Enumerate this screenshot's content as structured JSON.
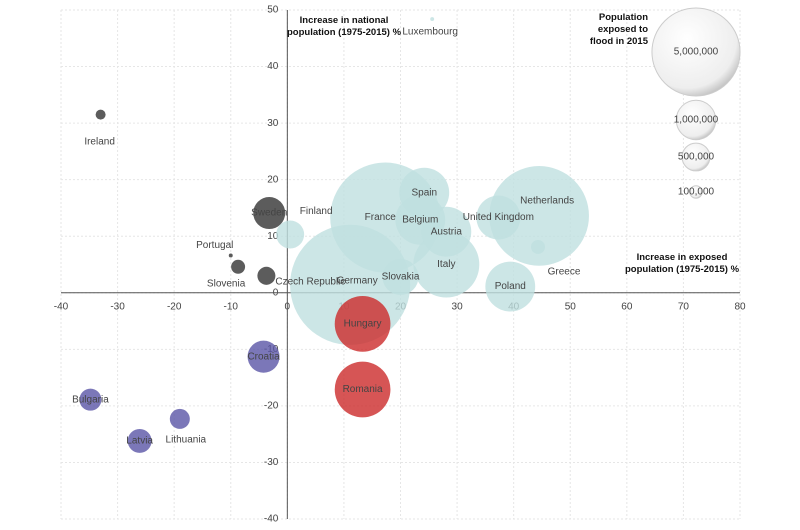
{
  "chart_data": {
    "type": "bubble",
    "y_label": "Increase in national population (1975-2015) %",
    "x_label": "Increase in exposed population (1975-2015) %",
    "xlim": [
      -40,
      80
    ],
    "xticks": [
      -40,
      -30,
      -20,
      -10,
      0,
      10,
      20,
      30,
      40,
      50,
      60,
      70,
      80
    ],
    "ylim": [
      -40,
      50
    ],
    "yticks": [
      -40,
      -30,
      -20,
      -10,
      0,
      10,
      20,
      30,
      40,
      50
    ],
    "grid": true,
    "points": [
      {
        "label": "Germany",
        "x": 11.1,
        "y": 1.4,
        "size": 9300000,
        "color": "#bfe0e0"
      },
      {
        "label": "France",
        "x": 17.3,
        "y": 13.3,
        "size": 7800000,
        "color": "#bfe0e0"
      },
      {
        "label": "Netherlands",
        "x": 44.5,
        "y": 13.6,
        "size": 6400000,
        "color": "#bfe0e0"
      },
      {
        "label": "Italy",
        "x": 28.1,
        "y": 5.0,
        "size": 2800000,
        "color": "#bfe0e0"
      },
      {
        "label": "Hungary",
        "x": 13.3,
        "y": -5.5,
        "size": 2000000,
        "color": "#cc2b2b"
      },
      {
        "label": "Romania",
        "x": 13.3,
        "y": -17.1,
        "size": 2000000,
        "color": "#cc2b2b"
      },
      {
        "label": "Belgium",
        "x": 23.5,
        "y": 12.9,
        "size": 1600000,
        "color": "#bfe0e0"
      },
      {
        "label": "Spain",
        "x": 24.2,
        "y": 17.7,
        "size": 1600000,
        "color": "#bfe0e0"
      },
      {
        "label": "Austria",
        "x": 28.1,
        "y": 10.8,
        "size": 1600000,
        "color": "#bfe0e0"
      },
      {
        "label": "Poland",
        "x": 39.4,
        "y": 1.1,
        "size": 1600000,
        "color": "#bfe0e0"
      },
      {
        "label": "United Kingdom",
        "x": 37.3,
        "y": 13.3,
        "size": 1250000,
        "color": "#bfe0e0"
      },
      {
        "label": "Slovakia",
        "x": 20,
        "y": 2.8,
        "size": 835000,
        "color": "#bfe0e0"
      },
      {
        "label": "Sweden",
        "x": -3.2,
        "y": 14.1,
        "size": 660000,
        "color": "#333333"
      },
      {
        "label": "Croatia",
        "x": -4.2,
        "y": -11.3,
        "size": 660000,
        "color": "#5a55a6"
      },
      {
        "label": "Finland",
        "x": 0.5,
        "y": 10.3,
        "size": 505000,
        "color": "#bfe0e0"
      },
      {
        "label": "Latvia",
        "x": -26.1,
        "y": -26.2,
        "size": 370000,
        "color": "#5a55a6"
      },
      {
        "label": "Bulgaria",
        "x": -34.8,
        "y": -18.9,
        "size": 312000,
        "color": "#5a55a6"
      },
      {
        "label": "Lithuania",
        "x": -19,
        "y": -22.3,
        "size": 258000,
        "color": "#5a55a6"
      },
      {
        "label": "Czech Republic",
        "x": -3.7,
        "y": 3.0,
        "size": 209000,
        "color": "#333333"
      },
      {
        "label": "Slovenia",
        "x": -8.7,
        "y": 4.6,
        "size": 126000,
        "color": "#333333"
      },
      {
        "label": "Greece",
        "x": 44.3,
        "y": 8.1,
        "size": 126000,
        "color": "#bfe0e0"
      },
      {
        "label": "Ireland",
        "x": -33,
        "y": 31.5,
        "size": 64000,
        "color": "#333333"
      },
      {
        "label": "Portugal",
        "x": -10,
        "y": 6.6,
        "size": 10000,
        "color": "#333333"
      },
      {
        "label": "Luxembourg",
        "x": 25.6,
        "y": 48.4,
        "size": 10000,
        "color": "#bfe0e0"
      }
    ],
    "size_legend": {
      "title": "Population exposed to flood in 2015",
      "sizes": [
        {
          "value": 5000000,
          "label": "5,000,000"
        },
        {
          "value": 1000000,
          "label": "1,000,000"
        },
        {
          "value": 500000,
          "label": "500,000"
        },
        {
          "value": 100000,
          "label": "100,000"
        }
      ]
    }
  }
}
